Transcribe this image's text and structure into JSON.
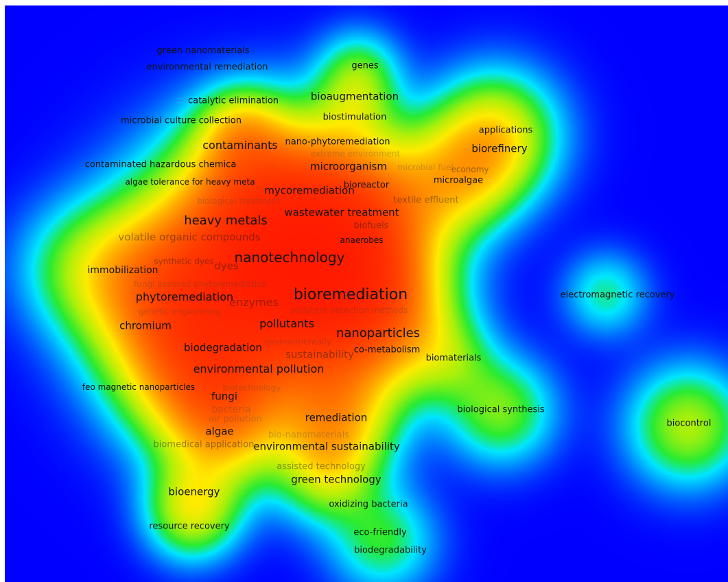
{
  "chart_data": {
    "type": "heatmap",
    "title": "",
    "colors": {
      "background": "#0000ff",
      "low": "#00e5ff",
      "mid": "#33ee22",
      "high": "#ffee00",
      "peak": "#ff1100"
    },
    "keywords": [
      {
        "label": "green nanomaterials"
      },
      {
        "label": "environmental remediation"
      },
      {
        "label": "genes"
      },
      {
        "label": "bioaugmentation"
      },
      {
        "label": "catalytic elimination"
      },
      {
        "label": "biostimulation"
      },
      {
        "label": "microbial culture collection"
      },
      {
        "label": "applications"
      },
      {
        "label": "biorefinery"
      },
      {
        "label": "contaminants"
      },
      {
        "label": "nano-phytoremediation"
      },
      {
        "label": "extreme environment"
      },
      {
        "label": "contaminated hazardous chemica"
      },
      {
        "label": "microorganism"
      },
      {
        "label": "microbial fuel"
      },
      {
        "label": "economy"
      },
      {
        "label": "algae tolerance for heavy meta"
      },
      {
        "label": "microalgae"
      },
      {
        "label": "mycoremediation"
      },
      {
        "label": "bioreactor"
      },
      {
        "label": "biological treatment"
      },
      {
        "label": "textile effluent"
      },
      {
        "label": "wastewater treatment"
      },
      {
        "label": "heavy metals"
      },
      {
        "label": "biofuels"
      },
      {
        "label": "volatile organic compounds"
      },
      {
        "label": "anaerobes"
      },
      {
        "label": "nanotechnology"
      },
      {
        "label": "synthetic dyes"
      },
      {
        "label": "dyes"
      },
      {
        "label": "immobilization"
      },
      {
        "label": "fungi assisted phytoremediation"
      },
      {
        "label": "bioremediation"
      },
      {
        "label": "electromagnetic recovery"
      },
      {
        "label": "phytoremediation"
      },
      {
        "label": "enzymes"
      },
      {
        "label": "genetic engineering"
      },
      {
        "label": "pollutant detection methods"
      },
      {
        "label": "chromium"
      },
      {
        "label": "pollutants"
      },
      {
        "label": "nanoparticles"
      },
      {
        "label": "environmentally"
      },
      {
        "label": "biodegradation"
      },
      {
        "label": "co-metabolism"
      },
      {
        "label": "sustainability"
      },
      {
        "label": "biomaterials"
      },
      {
        "label": "environmental pollution"
      },
      {
        "label": "feo magnetic nanoparticles"
      },
      {
        "label": "biotechnology"
      },
      {
        "label": "fungi"
      },
      {
        "label": "bacteria"
      },
      {
        "label": "air pollution"
      },
      {
        "label": "biological synthesis"
      },
      {
        "label": "remediation"
      },
      {
        "label": "biocontrol"
      },
      {
        "label": "algae"
      },
      {
        "label": "bio-nanomaterials"
      },
      {
        "label": "biomedical application"
      },
      {
        "label": "environmental sustainability"
      },
      {
        "label": "assisted technology"
      },
      {
        "label": "green technology"
      },
      {
        "label": "bioenergy"
      },
      {
        "label": "oxidizing bacteria"
      },
      {
        "label": "resource recovery"
      },
      {
        "label": "eco-friendly"
      },
      {
        "label": "biodegradability"
      }
    ]
  }
}
